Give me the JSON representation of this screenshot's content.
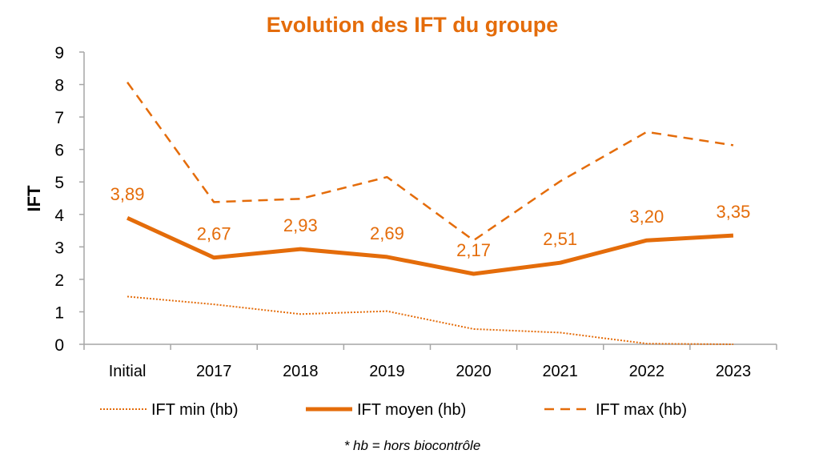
{
  "chart_data": {
    "type": "line",
    "title": "Evolution des IFT du groupe",
    "ylabel": "IFT",
    "xlabel": "",
    "categories": [
      "Initial",
      "2017",
      "2018",
      "2019",
      "2020",
      "2021",
      "2022",
      "2023"
    ],
    "ylim": [
      0,
      9
    ],
    "yticks": [
      "0",
      "1",
      "2",
      "3",
      "4",
      "5",
      "6",
      "7",
      "8",
      "9"
    ],
    "grid": false,
    "legend_position": "bottom",
    "series": [
      {
        "name": "IFT min (hb)",
        "style": "dotted",
        "values": [
          1.47,
          1.23,
          0.93,
          1.02,
          0.47,
          0.36,
          0.02,
          0.0
        ]
      },
      {
        "name": "IFT moyen (hb)",
        "style": "solid",
        "values": [
          3.89,
          2.67,
          2.93,
          2.69,
          2.17,
          2.51,
          3.2,
          3.35
        ],
        "data_labels": [
          "3,89",
          "2,67",
          "2,93",
          "2,69",
          "2,17",
          "2,51",
          "3,20",
          "3,35"
        ]
      },
      {
        "name": "IFT max (hb)",
        "style": "dashed",
        "values": [
          8.07,
          4.38,
          4.48,
          5.15,
          3.2,
          5.02,
          6.54,
          6.13
        ]
      }
    ],
    "footnote": "* hb = hors biocontrôle",
    "color": "#E46C0A"
  }
}
